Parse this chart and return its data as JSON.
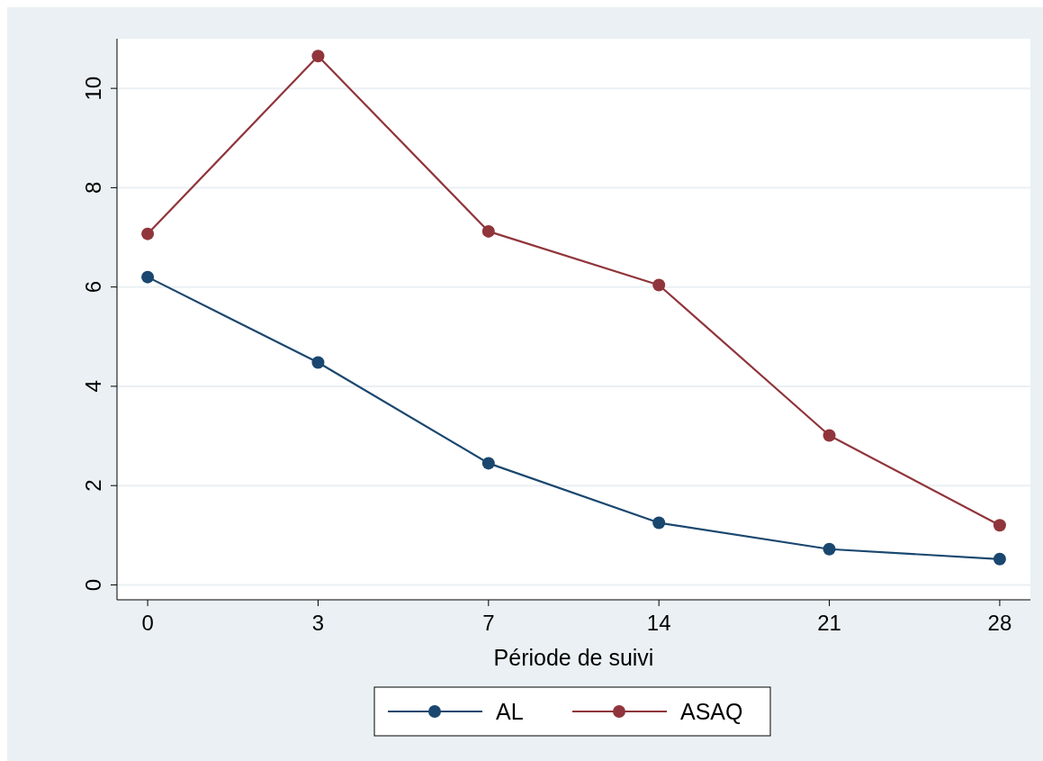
{
  "chart_data": {
    "type": "line",
    "xlabel": "Période de suivi",
    "categories": [
      "0",
      "3",
      "7",
      "14",
      "21",
      "28"
    ],
    "series": [
      {
        "name": "AL",
        "color": "#1a476f",
        "values": [
          6.2,
          4.48,
          2.45,
          1.25,
          0.72,
          0.52
        ]
      },
      {
        "name": "ASAQ",
        "color": "#90353b",
        "values": [
          7.07,
          10.65,
          7.12,
          6.04,
          3.01,
          1.2
        ]
      }
    ],
    "ylim": [
      -0.3,
      11
    ],
    "yticks": [
      0,
      2,
      4,
      6,
      8,
      10
    ],
    "grid": "y",
    "legend": "bottom",
    "marker": "circle",
    "line_style": "solid"
  }
}
